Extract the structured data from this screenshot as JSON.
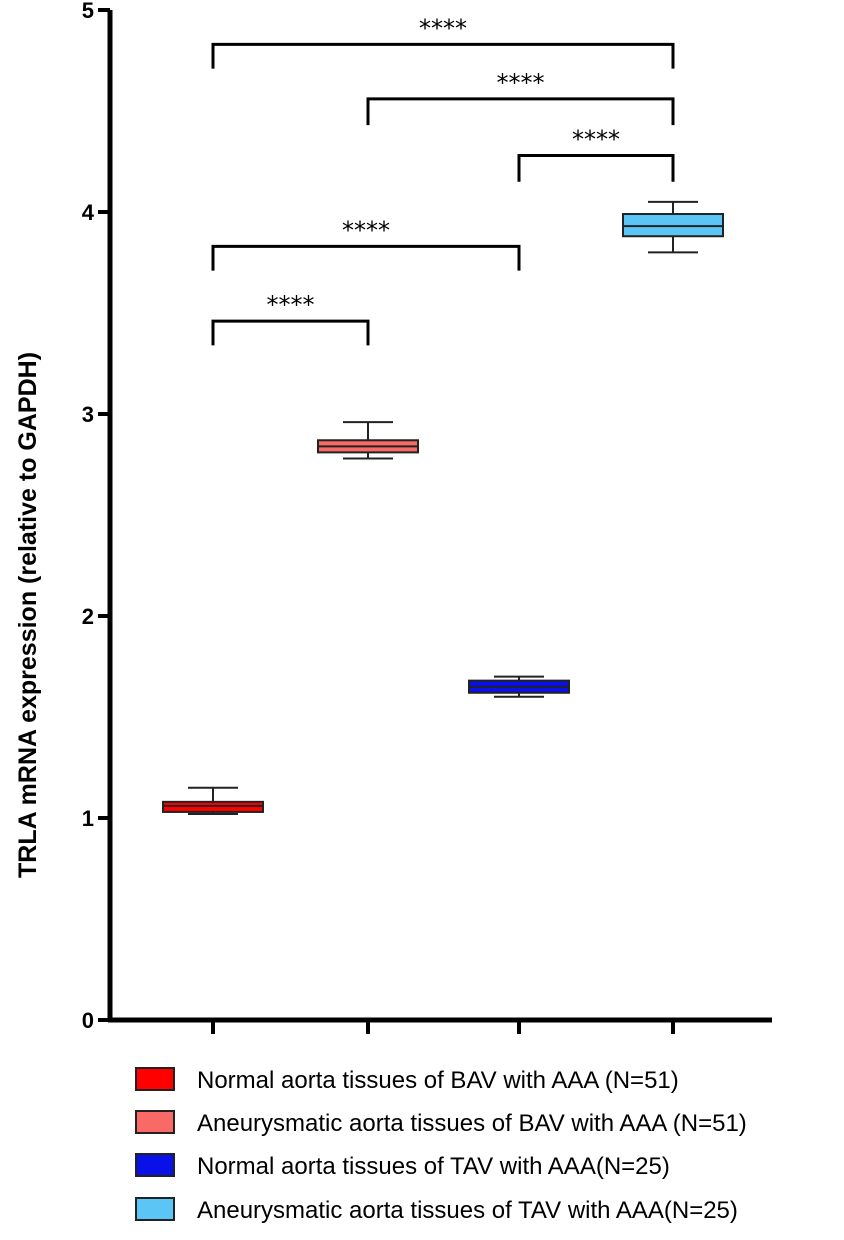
{
  "chart_data": {
    "type": "box",
    "ylabel": "TRLA mRNA expression (relative to GAPDH)",
    "xlabel": "",
    "ylim": [
      0,
      5
    ],
    "yticks": [
      0,
      1,
      2,
      3,
      4,
      5
    ],
    "series": [
      {
        "name": "Normal aorta tissues of BAV with AAA (N=51)",
        "color": "#ff0000",
        "min": 1.02,
        "q1": 1.03,
        "median": 1.06,
        "q3": 1.08,
        "max": 1.15
      },
      {
        "name": "Aneurysmatic aorta tissues of BAV with AAA (N=51)",
        "color": "#f96a66",
        "min": 2.78,
        "q1": 2.81,
        "median": 2.84,
        "q3": 2.87,
        "max": 2.96
      },
      {
        "name": "Normal aorta tissues of TAV with AAA(N=25)",
        "color": "#0a10e8",
        "min": 1.6,
        "q1": 1.62,
        "median": 1.65,
        "q3": 1.68,
        "max": 1.7
      },
      {
        "name": "Aneurysmatic aorta tissues of TAV with AAA(N=25)",
        "color": "#5bc6f6",
        "min": 3.8,
        "q1": 3.88,
        "median": 3.93,
        "q3": 3.99,
        "max": 4.05
      }
    ],
    "significance": [
      {
        "from": 0,
        "to": 3,
        "label": "****",
        "y": 4.83,
        "tick": 4.71
      },
      {
        "from": 1,
        "to": 3,
        "label": "****",
        "y": 4.56,
        "tick": 4.43
      },
      {
        "from": 2,
        "to": 3,
        "label": "****",
        "y": 4.28,
        "tick": 4.15
      },
      {
        "from": 0,
        "to": 2,
        "label": "****",
        "y": 3.83,
        "tick": 3.71
      },
      {
        "from": 0,
        "to": 1,
        "label": "****",
        "y": 3.46,
        "tick": 3.34
      }
    ],
    "legend_position": "bottom"
  }
}
